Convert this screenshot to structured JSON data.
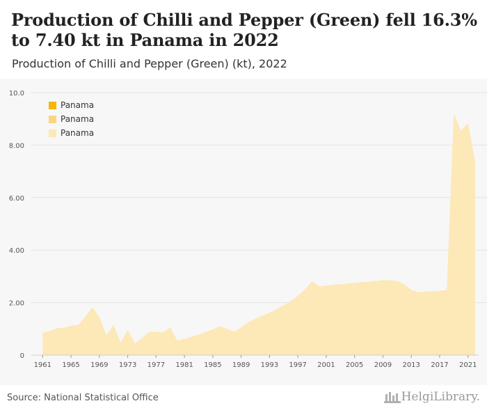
{
  "header": {
    "title": "Production of Chilli and Pepper (Green) fell 16.3% to 7.40 kt in Panama in 2022",
    "subtitle": "Production of Chilli and Pepper (Green) (kt), 2022"
  },
  "legend": {
    "items": [
      {
        "label": "Panama",
        "color": "#f5b50a"
      },
      {
        "label": "Panama",
        "color": "#fad77e"
      },
      {
        "label": "Panama",
        "color": "#fde8b7"
      }
    ]
  },
  "footer": {
    "source": "Source: National Statistical Office",
    "logo_text": "HelgiLibrary."
  },
  "colors": {
    "area_fill": "#fde8b7",
    "grid": "#e3e3e3",
    "axis_text": "#555555"
  },
  "chart_data": {
    "type": "area",
    "ylim": [
      0,
      10
    ],
    "yticks": [
      "0",
      "2.00",
      "4.00",
      "6.00",
      "8.00",
      "10.0"
    ],
    "xticks": [
      "1961",
      "1965",
      "1969",
      "1973",
      "1977",
      "1981",
      "1985",
      "1989",
      "1993",
      "1997",
      "2001",
      "2005",
      "2009",
      "2013",
      "2017",
      "2021"
    ],
    "grid": true,
    "legend_position": "top-left",
    "series": [
      {
        "name": "Panama",
        "x": [
          1961,
          1962,
          1963,
          1964,
          1965,
          1966,
          1967,
          1968,
          1969,
          1970,
          1971,
          1972,
          1973,
          1974,
          1975,
          1976,
          1977,
          1978,
          1979,
          1980,
          1981,
          1982,
          1983,
          1984,
          1985,
          1986,
          1987,
          1988,
          1989,
          1990,
          1991,
          1992,
          1993,
          1994,
          1995,
          1996,
          1997,
          1998,
          1999,
          2000,
          2001,
          2002,
          2003,
          2004,
          2005,
          2006,
          2007,
          2008,
          2009,
          2010,
          2011,
          2012,
          2013,
          2014,
          2015,
          2016,
          2017,
          2018,
          2019,
          2020,
          2021,
          2022
        ],
        "values": [
          0.85,
          0.92,
          1.02,
          1.04,
          1.12,
          1.15,
          1.45,
          1.82,
          1.45,
          0.75,
          1.15,
          0.48,
          0.95,
          0.45,
          0.65,
          0.88,
          0.9,
          0.86,
          1.05,
          0.55,
          0.62,
          0.7,
          0.78,
          0.88,
          0.98,
          1.1,
          1.0,
          0.9,
          1.05,
          1.25,
          1.38,
          1.5,
          1.62,
          1.75,
          1.9,
          2.05,
          2.25,
          2.5,
          2.82,
          2.62,
          2.65,
          2.68,
          2.7,
          2.72,
          2.75,
          2.78,
          2.8,
          2.82,
          2.85,
          2.85,
          2.82,
          2.7,
          2.48,
          2.4,
          2.42,
          2.43,
          2.45,
          2.48,
          9.2,
          8.55,
          8.84,
          7.4
        ]
      }
    ]
  }
}
